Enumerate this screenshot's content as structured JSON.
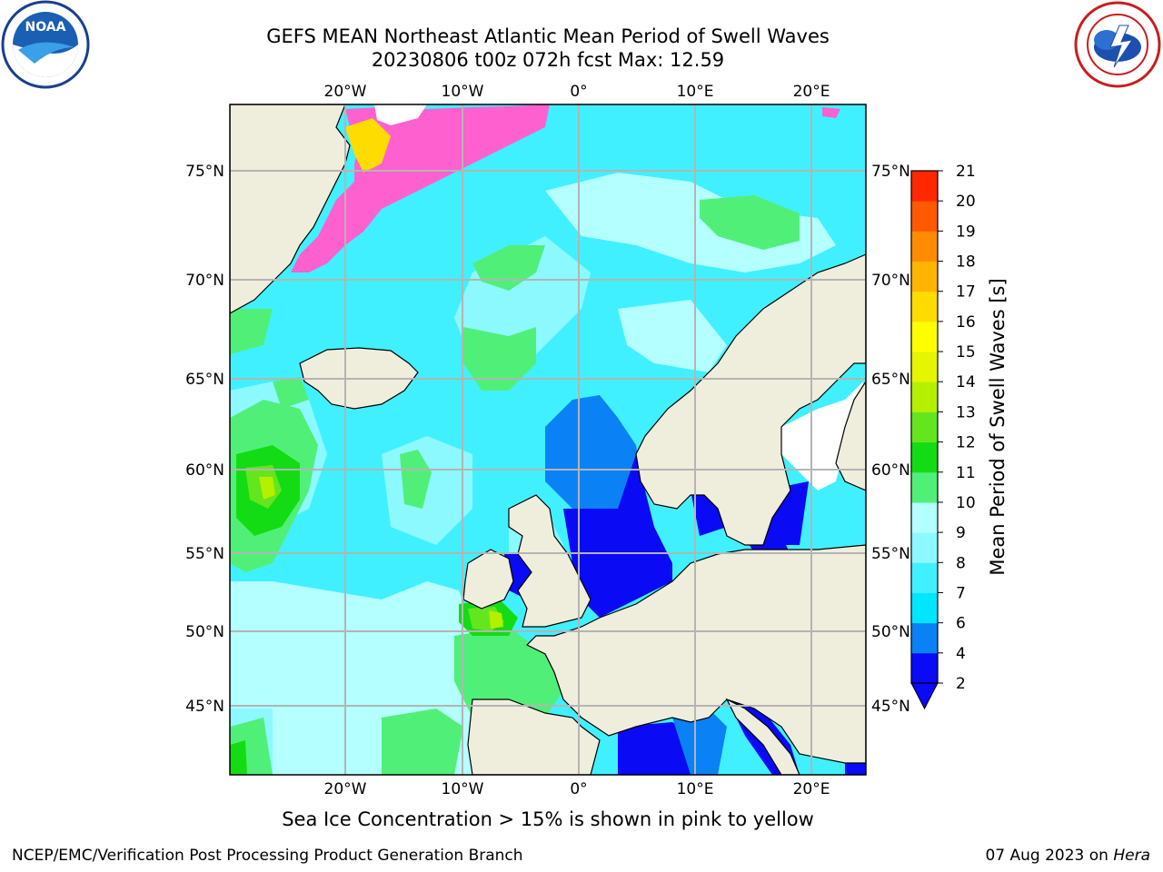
{
  "title_line1": "GEFS MEAN Northeast Atlantic Mean Period of Swell Waves",
  "title_line2": "20230806 t00z 072h fcst   Max: 12.59",
  "caption": "Sea Ice Concentration > 15% is shown in pink to yellow",
  "footer_left": "NCEP/EMC/Verification Post Processing Product Generation Branch",
  "footer_date": "07 Aug 2023 on ",
  "footer_machine": "Hera",
  "logo_left": "noaa-logo",
  "logo_right": "nws-logo",
  "lon_ticks": [
    "20°W",
    "10°W",
    "0°",
    "10°E",
    "20°E"
  ],
  "lat_ticks": [
    "75°N",
    "70°N",
    "65°N",
    "60°N",
    "55°N",
    "50°N",
    "45°N"
  ],
  "colorbar": {
    "label": "Mean Period of Swell Waves [s]",
    "ticks": [
      "2",
      "4",
      "6",
      "7",
      "8",
      "9",
      "10",
      "11",
      "12",
      "13",
      "14",
      "15",
      "16",
      "17",
      "18",
      "19",
      "20",
      "21"
    ],
    "colors": [
      "#0a0af5",
      "#0a82f5",
      "#00e6ff",
      "#41f0ff",
      "#8cf8ff",
      "#b4ffff",
      "#50f078",
      "#14dc14",
      "#64e61e",
      "#b4f000",
      "#e6f500",
      "#ffff00",
      "#ffdc00",
      "#ffb400",
      "#ff8c00",
      "#ff5a00",
      "#ff2800"
    ]
  },
  "map_colors": {
    "land": "#efeedd",
    "coast": "#000000",
    "grid": "#b4b4b4",
    "ocean_base": "#41f0ff",
    "ice": "#ff60d0"
  }
}
